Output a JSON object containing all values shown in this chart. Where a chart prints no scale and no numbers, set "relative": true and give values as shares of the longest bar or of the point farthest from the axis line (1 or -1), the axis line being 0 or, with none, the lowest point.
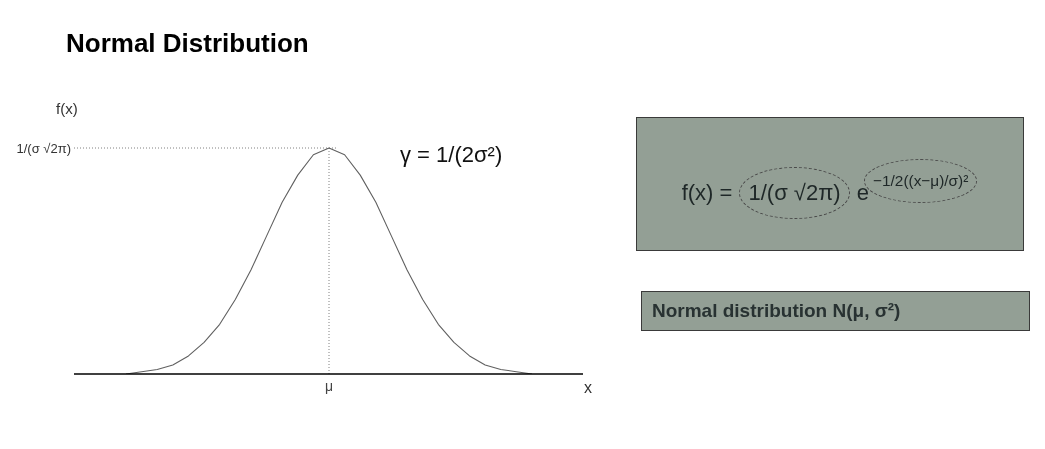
{
  "chart_data": {
    "type": "line",
    "title": "Normal Distribution",
    "xlabel": "x",
    "ylabel": "f(x)",
    "relative": true,
    "categories": [
      null,
      null,
      null,
      null,
      null,
      null,
      null,
      null,
      null,
      null,
      null,
      null,
      null,
      null,
      null,
      null,
      null,
      null,
      null,
      null,
      null,
      null,
      null,
      null,
      null,
      null,
      null
    ],
    "values": [
      0,
      0.01,
      0.02,
      0.04,
      0.08,
      0.14,
      0.22,
      0.33,
      0.46,
      0.61,
      0.76,
      0.88,
      0.97,
      1,
      0.97,
      0.88,
      0.76,
      0.61,
      0.46,
      0.33,
      0.22,
      0.14,
      0.08,
      0.04,
      0.02,
      0.01,
      0
    ],
    "color": "#606060",
    "ref_lines": [
      {
        "axis": "y",
        "value": 1,
        "label": "1/(σ √2π)",
        "line_style": "dotted",
        "color": "#808080"
      },
      {
        "axis": "x",
        "value": "μ",
        "line_style": "dotted",
        "color": "#808080"
      }
    ],
    "annotations": [
      "γ = 1/(2σ²)",
      "f(x) = 1/(σ √2π) e$^{−1/2((x−μ)/σ)²}$",
      "Normal distribution N(μ, σ²)"
    ]
  }
}
